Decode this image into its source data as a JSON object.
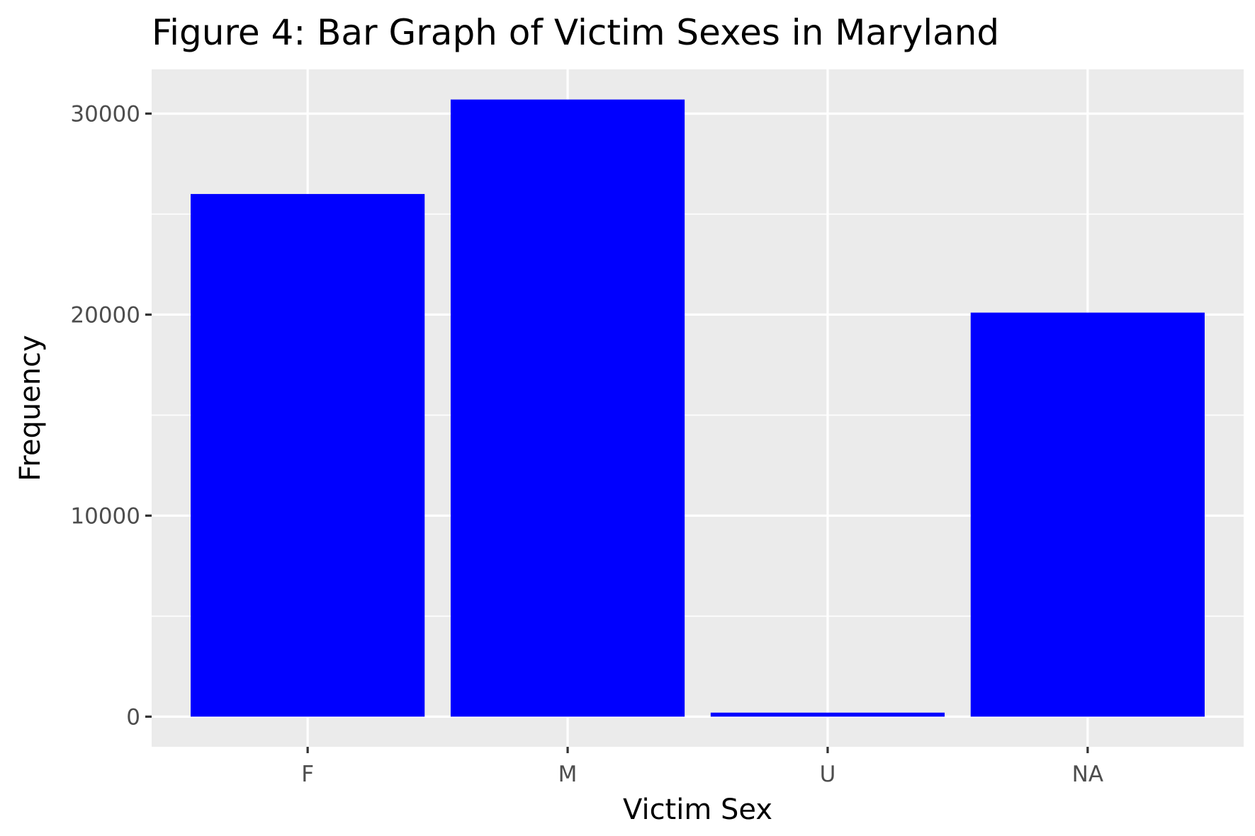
{
  "chart_data": {
    "type": "bar",
    "title": "Figure 4: Bar Graph of Victim Sexes in Maryland",
    "xlabel": "Victim Sex",
    "ylabel": "Frequency",
    "categories": [
      "F",
      "M",
      "U",
      "NA"
    ],
    "values": [
      26000,
      30700,
      200,
      20100
    ],
    "ylim": [
      -1500,
      32200
    ],
    "y_ticks": [
      0,
      10000,
      20000,
      30000
    ],
    "y_tick_labels": [
      "0",
      "10000",
      "20000",
      "30000"
    ],
    "y_minor_ticks": [
      5000,
      15000,
      25000
    ],
    "grid": true,
    "legend": "none",
    "colors": {
      "bar": "#0000ff",
      "panel_background": "#ebebeb",
      "grid": "#ffffff",
      "tick": "#333333",
      "tick_label": "#4d4d4d"
    }
  }
}
